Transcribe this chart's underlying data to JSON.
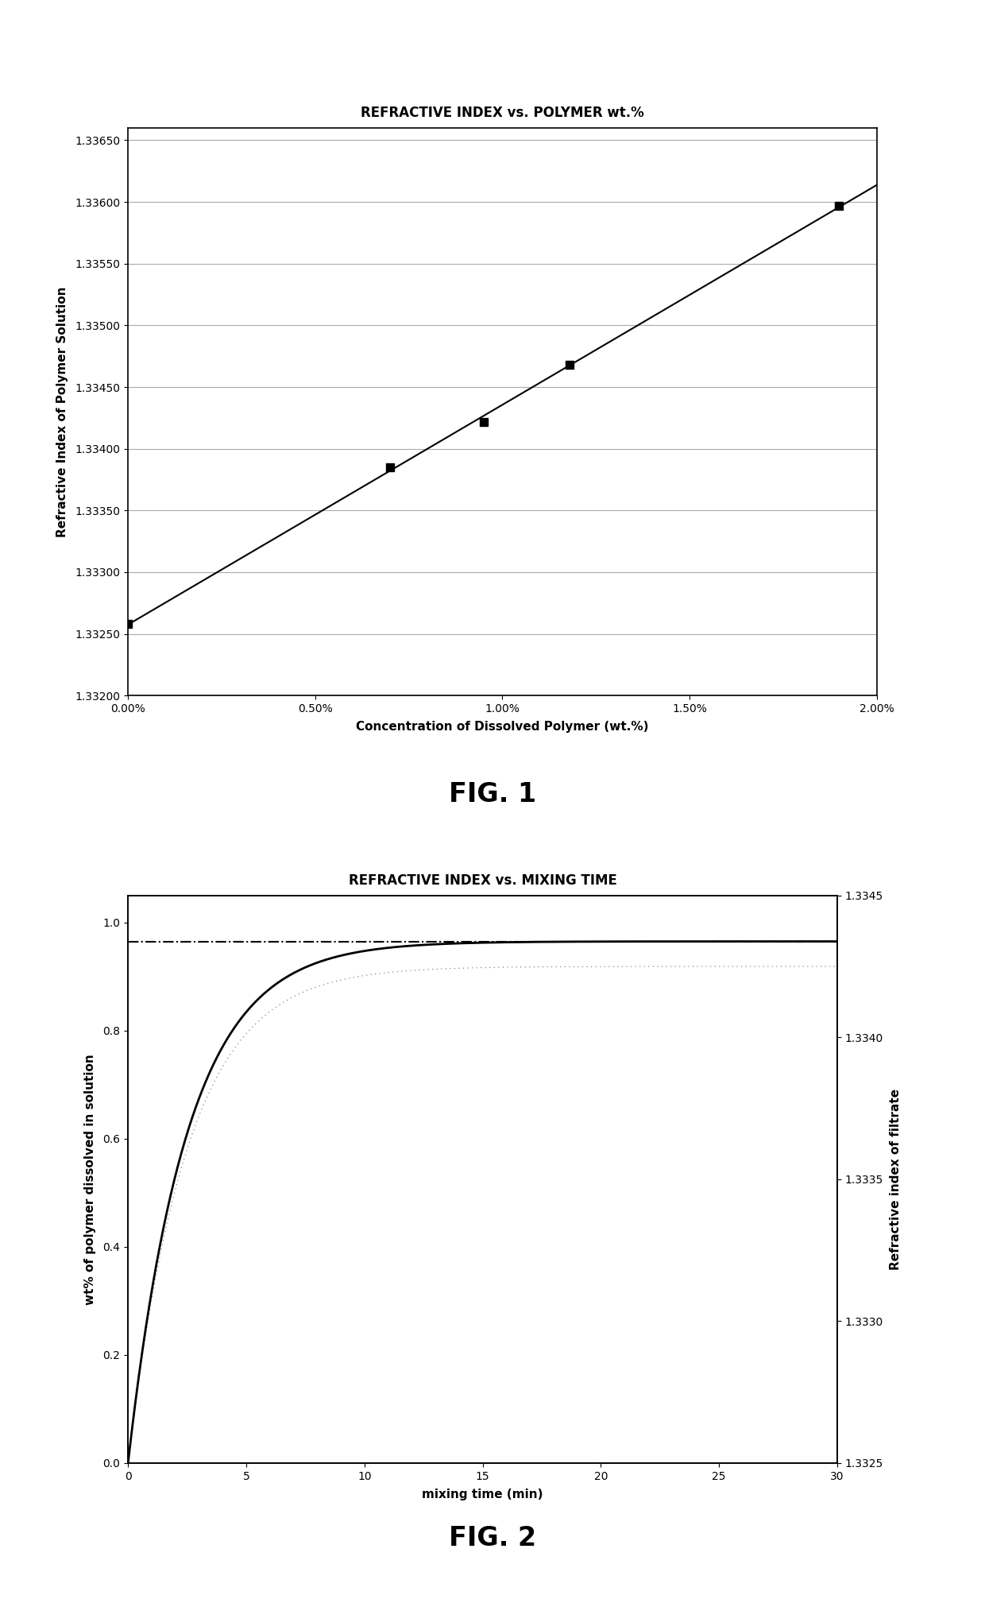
{
  "fig1": {
    "title": "REFRACTIVE INDEX vs. POLYMER wt.%",
    "xlabel": "Concentration of Dissolved Polymer (wt.%)",
    "ylabel": "Refractive Index of Polymer Solution",
    "x_data": [
      0.0,
      0.007,
      0.0095,
      0.0118,
      0.019
    ],
    "y_data": [
      1.33258,
      1.33385,
      1.33422,
      1.33468,
      1.33597
    ],
    "xlim": [
      0.0,
      0.02
    ],
    "ylim": [
      1.332,
      1.3366
    ],
    "xticks": [
      0.0,
      0.005,
      0.01,
      0.015,
      0.02
    ],
    "yticks": [
      1.332,
      1.3325,
      1.333,
      1.3335,
      1.334,
      1.3345,
      1.335,
      1.3355,
      1.336,
      1.3365
    ],
    "line_color": "#000000",
    "marker": "s",
    "marker_size": 7,
    "grid": true
  },
  "fig2": {
    "title": "REFRACTIVE INDEX vs. MIXING TIME",
    "xlabel": "mixing time (min)",
    "ylabel_left": "wt% of polymer dissolved in solution",
    "ylabel_right": "Refractive index of filtrate",
    "xlim": [
      0,
      30
    ],
    "ylim_left": [
      0.0,
      1.05
    ],
    "ylim_right": [
      1.3325,
      1.3345
    ],
    "xticks": [
      0,
      5,
      10,
      15,
      20,
      25,
      30
    ],
    "yticks_left": [
      0.0,
      0.2,
      0.4,
      0.6,
      0.8,
      1.0
    ],
    "yticks_right": [
      1.3325,
      1.333,
      1.3335,
      1.334,
      1.3345
    ],
    "asymptote": 0.965,
    "ri_asymptote": 1.33425,
    "time_constant": 2.5,
    "line_color": "#000000",
    "dash_color": "#000000"
  },
  "fig1_label": "FIG. 1",
  "fig2_label": "FIG. 2",
  "background_color": "#ffffff",
  "title_fontsize": 12,
  "label_fontsize": 11,
  "tick_fontsize": 10,
  "fig_label_fontsize": 24
}
